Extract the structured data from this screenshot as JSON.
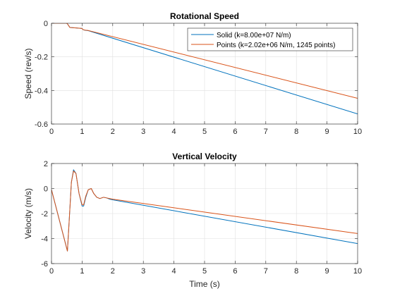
{
  "chart_data": [
    {
      "type": "line",
      "title": "Rotational Speed",
      "xlabel": "",
      "ylabel": "Speed (rev/s)",
      "xlim": [
        0,
        10
      ],
      "ylim": [
        -0.6,
        0
      ],
      "xticks": [
        0,
        1,
        2,
        3,
        4,
        5,
        6,
        7,
        8,
        9,
        10
      ],
      "xtick_labels": [
        "0",
        "1",
        "2",
        "3",
        "4",
        "5",
        "6",
        "7",
        "8",
        "9",
        "10"
      ],
      "yticks": [
        0,
        -0.2,
        -0.4,
        -0.6
      ],
      "ytick_labels": [
        "0",
        "-0.2",
        "-0.4",
        "-0.6"
      ],
      "grid": true,
      "legend_position": "top-right",
      "series": [
        {
          "name": "Solid   (k=8.00e+07 N/m)",
          "color": "#0072bd",
          "x": [
            0,
            0.49,
            0.52,
            0.6,
            0.8,
            1.0,
            1.03,
            1.1,
            1.2,
            10
          ],
          "y": [
            0,
            0,
            -0.003,
            -0.025,
            -0.028,
            -0.031,
            -0.038,
            -0.042,
            -0.044,
            -0.54
          ]
        },
        {
          "name": "Points (k=2.02e+06 N/m, 1245 points)",
          "color": "#d95319",
          "x": [
            0,
            0.49,
            0.52,
            0.6,
            0.8,
            1.0,
            1.03,
            1.1,
            1.2,
            10
          ],
          "y": [
            0,
            0,
            -0.003,
            -0.025,
            -0.028,
            -0.031,
            -0.038,
            -0.041,
            -0.043,
            -0.447
          ]
        }
      ]
    },
    {
      "type": "line",
      "title": "Vertical Velocity",
      "xlabel": "Time (s)",
      "ylabel": "Velocity (m/s)",
      "xlim": [
        0,
        10
      ],
      "ylim": [
        -6,
        2
      ],
      "xticks": [
        0,
        1,
        2,
        3,
        4,
        5,
        6,
        7,
        8,
        9,
        10
      ],
      "xtick_labels": [
        "0",
        "1",
        "2",
        "3",
        "4",
        "5",
        "6",
        "7",
        "8",
        "9",
        "10"
      ],
      "yticks": [
        2,
        0,
        -2,
        -4,
        -6
      ],
      "ytick_labels": [
        "2",
        "0",
        "-2",
        "-4",
        "-6"
      ],
      "grid": true,
      "series": [
        {
          "name": "Solid",
          "color": "#0072bd",
          "x": [
            0,
            0.52,
            0.58,
            0.65,
            0.72,
            0.8,
            0.9,
            1.0,
            1.05,
            1.12,
            1.2,
            1.3,
            1.38,
            1.48,
            1.58,
            1.7,
            1.8,
            1.9,
            2.0,
            10
          ],
          "y": [
            -0.1,
            -5.0,
            -2.5,
            0.5,
            1.5,
            1.2,
            -0.4,
            -1.4,
            -1.4,
            -0.7,
            -0.1,
            0.0,
            -0.4,
            -0.7,
            -0.8,
            -0.7,
            -0.75,
            -0.85,
            -0.9,
            -4.4
          ]
        },
        {
          "name": "Points",
          "color": "#d95319",
          "x": [
            0,
            0.52,
            0.58,
            0.65,
            0.72,
            0.8,
            0.9,
            1.0,
            1.05,
            1.12,
            1.2,
            1.3,
            1.38,
            1.48,
            1.58,
            1.7,
            1.8,
            1.9,
            2.0,
            10
          ],
          "y": [
            -0.1,
            -5.0,
            -2.5,
            0.5,
            1.4,
            1.2,
            -0.4,
            -1.3,
            -1.3,
            -0.6,
            -0.1,
            0.0,
            -0.4,
            -0.7,
            -0.8,
            -0.7,
            -0.75,
            -0.8,
            -0.85,
            -3.6
          ]
        }
      ]
    }
  ]
}
